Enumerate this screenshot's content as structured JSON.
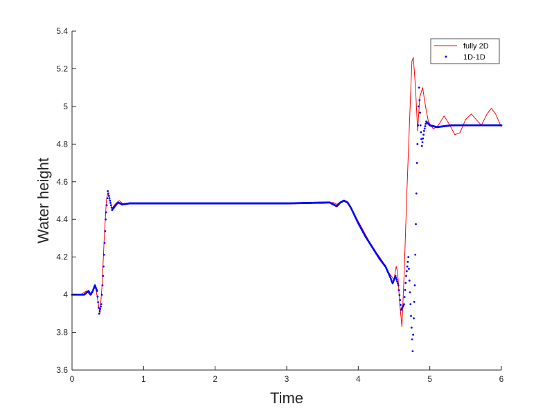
{
  "chart_data": {
    "type": "line",
    "title": "",
    "xlabel": "Time",
    "ylabel": "Water height",
    "xlim": [
      0,
      6
    ],
    "ylim": [
      3.6,
      5.4
    ],
    "xticks": [
      "0",
      "1",
      "2",
      "3",
      "4",
      "5",
      "6"
    ],
    "yticks": [
      "3.6",
      "3.8",
      "4",
      "4.2",
      "4.4",
      "4.6",
      "4.8",
      "5",
      "5.2",
      "5.4"
    ],
    "grid": false,
    "legend_position": "top-right",
    "series": [
      {
        "name": "fully 2D",
        "style": "solid-line",
        "color": "#ff0000",
        "points": [
          [
            0,
            4.0
          ],
          [
            0.12,
            4.0
          ],
          [
            0.2,
            4.02
          ],
          [
            0.25,
            4.0
          ],
          [
            0.3,
            4.03
          ],
          [
            0.33,
            4.04
          ],
          [
            0.36,
            3.97
          ],
          [
            0.39,
            3.9
          ],
          [
            0.42,
            4.05
          ],
          [
            0.45,
            4.3
          ],
          [
            0.48,
            4.5
          ],
          [
            0.5,
            4.54
          ],
          [
            0.53,
            4.5
          ],
          [
            0.56,
            4.46
          ],
          [
            0.6,
            4.48
          ],
          [
            0.66,
            4.5
          ],
          [
            0.72,
            4.48
          ],
          [
            0.8,
            4.485
          ],
          [
            1.0,
            4.485
          ],
          [
            2.0,
            4.485
          ],
          [
            3.0,
            4.485
          ],
          [
            3.5,
            4.485
          ],
          [
            3.65,
            4.49
          ],
          [
            3.7,
            4.48
          ],
          [
            3.75,
            4.49
          ],
          [
            3.8,
            4.5
          ],
          [
            3.85,
            4.49
          ],
          [
            3.9,
            4.46
          ],
          [
            4.0,
            4.39
          ],
          [
            4.1,
            4.32
          ],
          [
            4.2,
            4.25
          ],
          [
            4.3,
            4.2
          ],
          [
            4.35,
            4.17
          ],
          [
            4.42,
            4.12
          ],
          [
            4.46,
            4.1
          ],
          [
            4.5,
            4.08
          ],
          [
            4.53,
            4.15
          ],
          [
            4.55,
            4.12
          ],
          [
            4.58,
            3.95
          ],
          [
            4.61,
            3.83
          ],
          [
            4.64,
            4.1
          ],
          [
            4.68,
            4.55
          ],
          [
            4.72,
            4.95
          ],
          [
            4.75,
            5.24
          ],
          [
            4.77,
            5.26
          ],
          [
            4.8,
            5.1
          ],
          [
            4.83,
            4.87
          ],
          [
            4.86,
            5.05
          ],
          [
            4.9,
            5.1
          ],
          [
            4.94,
            5.0
          ],
          [
            4.98,
            4.92
          ],
          [
            5.05,
            4.88
          ],
          [
            5.12,
            4.9
          ],
          [
            5.2,
            4.95
          ],
          [
            5.28,
            4.9
          ],
          [
            5.35,
            4.85
          ],
          [
            5.42,
            4.86
          ],
          [
            5.5,
            4.93
          ],
          [
            5.58,
            4.96
          ],
          [
            5.65,
            4.93
          ],
          [
            5.72,
            4.9
          ],
          [
            5.8,
            4.96
          ],
          [
            5.86,
            4.99
          ],
          [
            5.92,
            4.96
          ],
          [
            6.0,
            4.89
          ]
        ]
      },
      {
        "name": "1D-1D",
        "style": "dotted",
        "color": "#0000ff",
        "points": [
          [
            0,
            4.0
          ],
          [
            0.12,
            4.0
          ],
          [
            0.17,
            4.0
          ],
          [
            0.2,
            4.01
          ],
          [
            0.23,
            4.02
          ],
          [
            0.26,
            4.0
          ],
          [
            0.29,
            4.02
          ],
          [
            0.32,
            4.05
          ],
          [
            0.35,
            4.02
          ],
          [
            0.38,
            3.9
          ],
          [
            0.41,
            3.95
          ],
          [
            0.44,
            4.15
          ],
          [
            0.47,
            4.4
          ],
          [
            0.5,
            4.55
          ],
          [
            0.53,
            4.5
          ],
          [
            0.56,
            4.45
          ],
          [
            0.6,
            4.47
          ],
          [
            0.64,
            4.49
          ],
          [
            0.7,
            4.48
          ],
          [
            0.8,
            4.485
          ],
          [
            1.0,
            4.485
          ],
          [
            2.0,
            4.485
          ],
          [
            3.0,
            4.485
          ],
          [
            3.6,
            4.49
          ],
          [
            3.7,
            4.47
          ],
          [
            3.75,
            4.49
          ],
          [
            3.8,
            4.5
          ],
          [
            3.85,
            4.49
          ],
          [
            3.9,
            4.46
          ],
          [
            4.0,
            4.38
          ],
          [
            4.1,
            4.31
          ],
          [
            4.2,
            4.25
          ],
          [
            4.3,
            4.19
          ],
          [
            4.38,
            4.15
          ],
          [
            4.44,
            4.1
          ],
          [
            4.48,
            4.06
          ],
          [
            4.52,
            4.1
          ],
          [
            4.56,
            4.05
          ],
          [
            4.6,
            3.92
          ],
          [
            4.64,
            3.95
          ],
          [
            4.67,
            4.1
          ],
          [
            4.7,
            4.2
          ],
          [
            4.73,
            3.95
          ],
          [
            4.76,
            3.7
          ],
          [
            4.79,
            4.05
          ],
          [
            4.82,
            4.7
          ],
          [
            4.85,
            5.1
          ],
          [
            4.87,
            4.9
          ],
          [
            4.89,
            4.79
          ],
          [
            4.92,
            4.87
          ],
          [
            4.95,
            4.92
          ],
          [
            5.0,
            4.9
          ],
          [
            5.1,
            4.89
          ],
          [
            5.3,
            4.9
          ],
          [
            5.6,
            4.9
          ],
          [
            6.0,
            4.9
          ]
        ]
      }
    ]
  },
  "legend": {
    "items": [
      "fully 2D",
      "1D-1D"
    ]
  }
}
